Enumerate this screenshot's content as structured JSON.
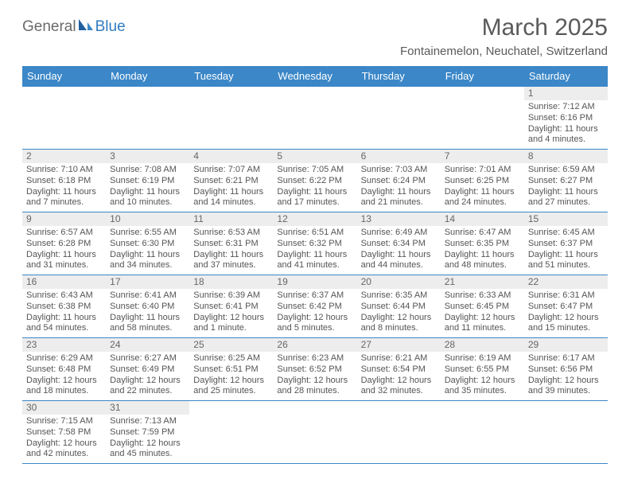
{
  "logo": {
    "part1": "General",
    "part2": "Blue"
  },
  "title": "March 2025",
  "location": "Fontainemelon, Neuchatel, Switzerland",
  "colors": {
    "header_bg": "#3b87c8",
    "header_text": "#ffffff",
    "daynum_bg": "#ededed",
    "row_border": "#3b87c8",
    "text": "#555555",
    "logo_blue": "#2f7bbf",
    "logo_gray": "#6a6a6a",
    "background": "#ffffff"
  },
  "day_names": [
    "Sunday",
    "Monday",
    "Tuesday",
    "Wednesday",
    "Thursday",
    "Friday",
    "Saturday"
  ],
  "weeks": [
    [
      {
        "empty": true
      },
      {
        "empty": true
      },
      {
        "empty": true
      },
      {
        "empty": true
      },
      {
        "empty": true
      },
      {
        "empty": true
      },
      {
        "num": "1",
        "sunrise": "Sunrise: 7:12 AM",
        "sunset": "Sunset: 6:16 PM",
        "daylight": "Daylight: 11 hours and 4 minutes."
      }
    ],
    [
      {
        "num": "2",
        "sunrise": "Sunrise: 7:10 AM",
        "sunset": "Sunset: 6:18 PM",
        "daylight": "Daylight: 11 hours and 7 minutes."
      },
      {
        "num": "3",
        "sunrise": "Sunrise: 7:08 AM",
        "sunset": "Sunset: 6:19 PM",
        "daylight": "Daylight: 11 hours and 10 minutes."
      },
      {
        "num": "4",
        "sunrise": "Sunrise: 7:07 AM",
        "sunset": "Sunset: 6:21 PM",
        "daylight": "Daylight: 11 hours and 14 minutes."
      },
      {
        "num": "5",
        "sunrise": "Sunrise: 7:05 AM",
        "sunset": "Sunset: 6:22 PM",
        "daylight": "Daylight: 11 hours and 17 minutes."
      },
      {
        "num": "6",
        "sunrise": "Sunrise: 7:03 AM",
        "sunset": "Sunset: 6:24 PM",
        "daylight": "Daylight: 11 hours and 21 minutes."
      },
      {
        "num": "7",
        "sunrise": "Sunrise: 7:01 AM",
        "sunset": "Sunset: 6:25 PM",
        "daylight": "Daylight: 11 hours and 24 minutes."
      },
      {
        "num": "8",
        "sunrise": "Sunrise: 6:59 AM",
        "sunset": "Sunset: 6:27 PM",
        "daylight": "Daylight: 11 hours and 27 minutes."
      }
    ],
    [
      {
        "num": "9",
        "sunrise": "Sunrise: 6:57 AM",
        "sunset": "Sunset: 6:28 PM",
        "daylight": "Daylight: 11 hours and 31 minutes."
      },
      {
        "num": "10",
        "sunrise": "Sunrise: 6:55 AM",
        "sunset": "Sunset: 6:30 PM",
        "daylight": "Daylight: 11 hours and 34 minutes."
      },
      {
        "num": "11",
        "sunrise": "Sunrise: 6:53 AM",
        "sunset": "Sunset: 6:31 PM",
        "daylight": "Daylight: 11 hours and 37 minutes."
      },
      {
        "num": "12",
        "sunrise": "Sunrise: 6:51 AM",
        "sunset": "Sunset: 6:32 PM",
        "daylight": "Daylight: 11 hours and 41 minutes."
      },
      {
        "num": "13",
        "sunrise": "Sunrise: 6:49 AM",
        "sunset": "Sunset: 6:34 PM",
        "daylight": "Daylight: 11 hours and 44 minutes."
      },
      {
        "num": "14",
        "sunrise": "Sunrise: 6:47 AM",
        "sunset": "Sunset: 6:35 PM",
        "daylight": "Daylight: 11 hours and 48 minutes."
      },
      {
        "num": "15",
        "sunrise": "Sunrise: 6:45 AM",
        "sunset": "Sunset: 6:37 PM",
        "daylight": "Daylight: 11 hours and 51 minutes."
      }
    ],
    [
      {
        "num": "16",
        "sunrise": "Sunrise: 6:43 AM",
        "sunset": "Sunset: 6:38 PM",
        "daylight": "Daylight: 11 hours and 54 minutes."
      },
      {
        "num": "17",
        "sunrise": "Sunrise: 6:41 AM",
        "sunset": "Sunset: 6:40 PM",
        "daylight": "Daylight: 11 hours and 58 minutes."
      },
      {
        "num": "18",
        "sunrise": "Sunrise: 6:39 AM",
        "sunset": "Sunset: 6:41 PM",
        "daylight": "Daylight: 12 hours and 1 minute."
      },
      {
        "num": "19",
        "sunrise": "Sunrise: 6:37 AM",
        "sunset": "Sunset: 6:42 PM",
        "daylight": "Daylight: 12 hours and 5 minutes."
      },
      {
        "num": "20",
        "sunrise": "Sunrise: 6:35 AM",
        "sunset": "Sunset: 6:44 PM",
        "daylight": "Daylight: 12 hours and 8 minutes."
      },
      {
        "num": "21",
        "sunrise": "Sunrise: 6:33 AM",
        "sunset": "Sunset: 6:45 PM",
        "daylight": "Daylight: 12 hours and 11 minutes."
      },
      {
        "num": "22",
        "sunrise": "Sunrise: 6:31 AM",
        "sunset": "Sunset: 6:47 PM",
        "daylight": "Daylight: 12 hours and 15 minutes."
      }
    ],
    [
      {
        "num": "23",
        "sunrise": "Sunrise: 6:29 AM",
        "sunset": "Sunset: 6:48 PM",
        "daylight": "Daylight: 12 hours and 18 minutes."
      },
      {
        "num": "24",
        "sunrise": "Sunrise: 6:27 AM",
        "sunset": "Sunset: 6:49 PM",
        "daylight": "Daylight: 12 hours and 22 minutes."
      },
      {
        "num": "25",
        "sunrise": "Sunrise: 6:25 AM",
        "sunset": "Sunset: 6:51 PM",
        "daylight": "Daylight: 12 hours and 25 minutes."
      },
      {
        "num": "26",
        "sunrise": "Sunrise: 6:23 AM",
        "sunset": "Sunset: 6:52 PM",
        "daylight": "Daylight: 12 hours and 28 minutes."
      },
      {
        "num": "27",
        "sunrise": "Sunrise: 6:21 AM",
        "sunset": "Sunset: 6:54 PM",
        "daylight": "Daylight: 12 hours and 32 minutes."
      },
      {
        "num": "28",
        "sunrise": "Sunrise: 6:19 AM",
        "sunset": "Sunset: 6:55 PM",
        "daylight": "Daylight: 12 hours and 35 minutes."
      },
      {
        "num": "29",
        "sunrise": "Sunrise: 6:17 AM",
        "sunset": "Sunset: 6:56 PM",
        "daylight": "Daylight: 12 hours and 39 minutes."
      }
    ],
    [
      {
        "num": "30",
        "sunrise": "Sunrise: 7:15 AM",
        "sunset": "Sunset: 7:58 PM",
        "daylight": "Daylight: 12 hours and 42 minutes."
      },
      {
        "num": "31",
        "sunrise": "Sunrise: 7:13 AM",
        "sunset": "Sunset: 7:59 PM",
        "daylight": "Daylight: 12 hours and 45 minutes."
      },
      {
        "empty": true
      },
      {
        "empty": true
      },
      {
        "empty": true
      },
      {
        "empty": true
      },
      {
        "empty": true
      }
    ]
  ]
}
